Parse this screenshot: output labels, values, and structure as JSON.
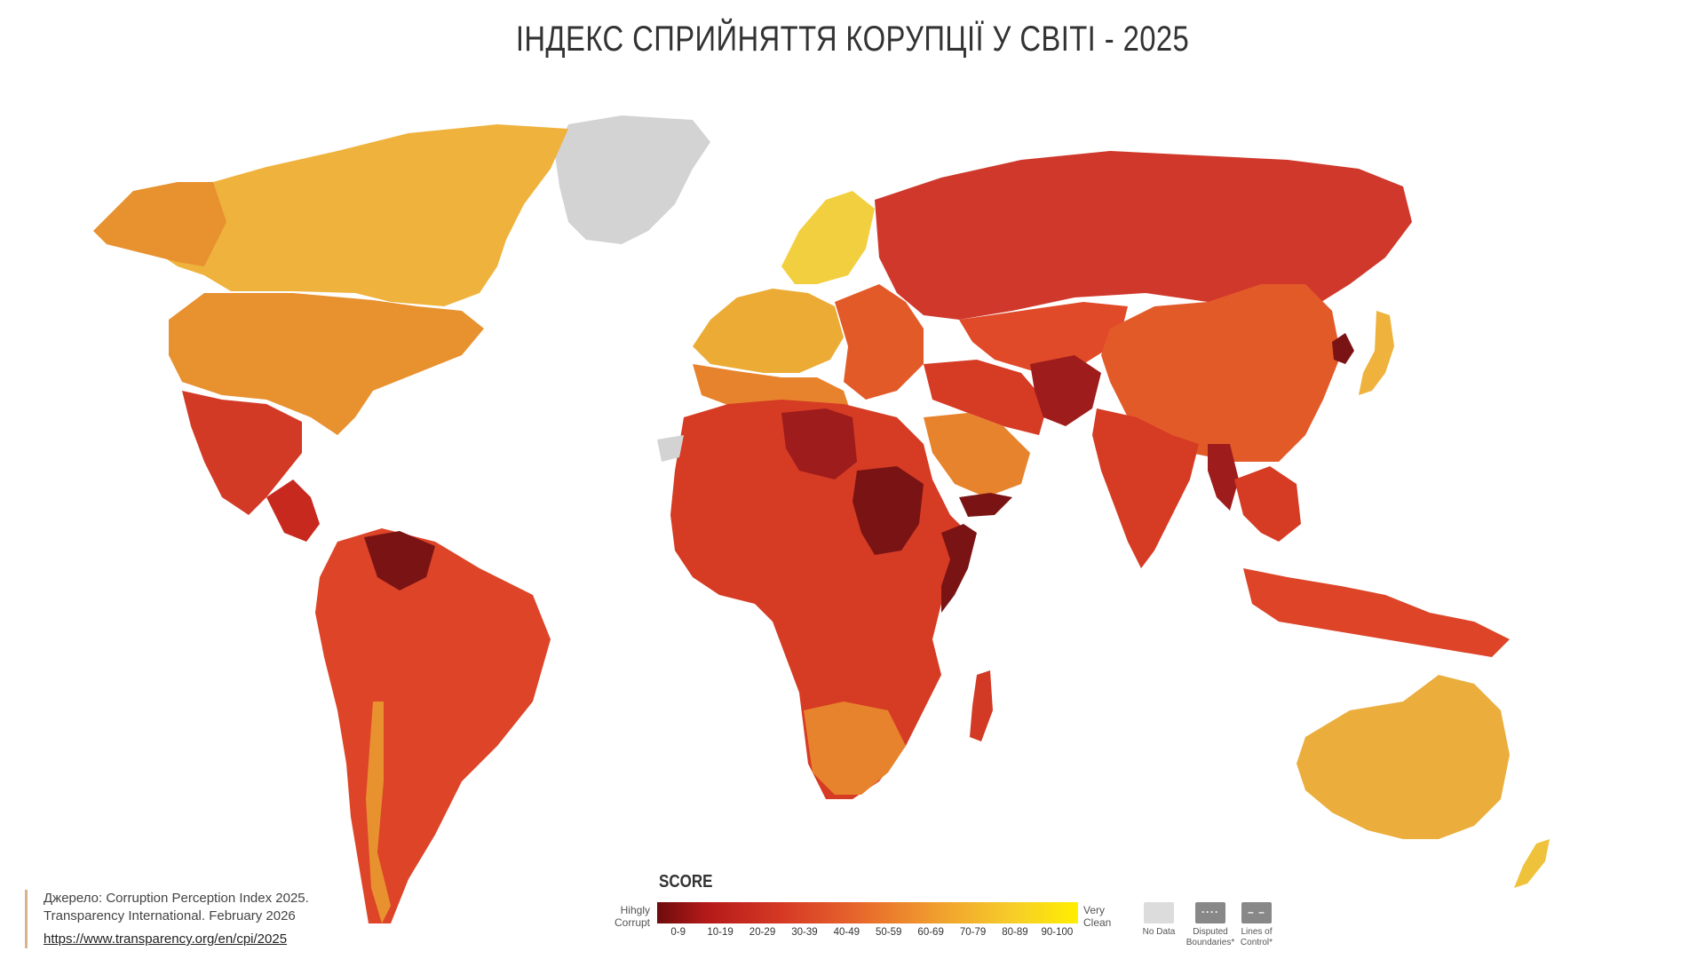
{
  "title": "ІНДЕКС СПРИЙНЯТТЯ КОРУПЦІЇ У СВІТІ - 2025",
  "source": {
    "line1": "Джерело: Corruption Perception Index 2025.",
    "line2": "Transparency International. February 2026",
    "link": "https://www.transparency.org/en/cpi/2025"
  },
  "legend": {
    "heading": "SCORE",
    "low_label": "Hihgly Corrupt",
    "high_label": "Very Clean",
    "ranges": [
      "0-9",
      "10-19",
      "20-29",
      "30-39",
      "40-49",
      "50-59",
      "60-69",
      "70-79",
      "80-89",
      "90-100"
    ],
    "no_data": "No Data",
    "disputed": "Disputed Boundaries*",
    "lines_of_control": "Lines of Control*"
  },
  "colors": {
    "no_data": "#d3d3d3",
    "band_0_9": "#6e0c0c",
    "band_10_19": "#9e1c1c",
    "band_20_29": "#c4271f",
    "band_30_39": "#d63b24",
    "band_40_49": "#e35a29",
    "band_50_59": "#e8832d",
    "band_60_69": "#eba02f",
    "band_70_79": "#efbd35",
    "band_80_89": "#f3d23d"
  },
  "regions": [
    {
      "name": "Canada",
      "band": "70-79"
    },
    {
      "name": "USA",
      "band": "60-69"
    },
    {
      "name": "Greenland",
      "band": "No Data"
    },
    {
      "name": "Mexico",
      "band": "20-29"
    },
    {
      "name": "Brazil",
      "band": "30-39"
    },
    {
      "name": "Venezuela",
      "band": "0-9"
    },
    {
      "name": "Russia",
      "band": "20-29"
    },
    {
      "name": "China",
      "band": "40-49"
    },
    {
      "name": "India",
      "band": "30-39"
    },
    {
      "name": "Australia",
      "band": "70-79"
    },
    {
      "name": "Nordics",
      "band": "80-89"
    },
    {
      "name": "Libya",
      "band": "10-19"
    },
    {
      "name": "Sudan",
      "band": "0-9"
    },
    {
      "name": "Somalia",
      "band": "0-9"
    },
    {
      "name": "Saudi Arabia",
      "band": "50-59"
    },
    {
      "name": "Japan",
      "band": "70-79"
    },
    {
      "name": "Afghanistan",
      "band": "10-19"
    },
    {
      "name": "Myanmar",
      "band": "10-19"
    }
  ]
}
